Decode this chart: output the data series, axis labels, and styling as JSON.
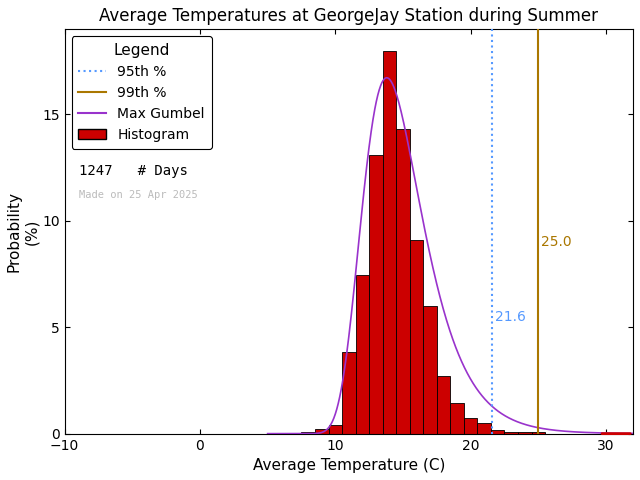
{
  "title": "Average Temperatures at GeorgeJay Station during Summer",
  "xlabel": "Average Temperature (C)",
  "ylabel": "Probability\n(%)",
  "xlim": [
    -10,
    32
  ],
  "ylim": [
    0,
    19
  ],
  "xticks": [
    -10,
    0,
    10,
    20,
    30
  ],
  "yticks": [
    0,
    5,
    10,
    15
  ],
  "n_days": 1247,
  "pct_95": 21.6,
  "pct_99": 25.0,
  "pct_95_color": "#5599ff",
  "pct_99_color": "#aa7700",
  "gumbel_color": "#9933cc",
  "hist_facecolor": "#cc0000",
  "hist_edgecolor": "#000000",
  "background_color": "#ffffff",
  "date_label": "Made on 25 Apr 2025",
  "date_label_color": "#bbbbbb",
  "legend_title": "Legend",
  "bin_centers": [
    8,
    9,
    10,
    11,
    12,
    13,
    14,
    15,
    16,
    17,
    18,
    19,
    20,
    21,
    22,
    23,
    24,
    25,
    26,
    27
  ],
  "bin_probs": [
    0.08,
    0.24,
    0.4,
    3.85,
    7.45,
    13.07,
    17.96,
    14.31,
    9.11,
    5.98,
    2.73,
    1.44,
    0.72,
    0.48,
    0.16,
    0.08,
    0.08,
    0.08,
    0.0,
    0.0
  ],
  "gumbel_mu": 13.8,
  "gumbel_beta": 2.2,
  "title_fontsize": 12,
  "axis_fontsize": 11,
  "tick_fontsize": 10,
  "legend_fontsize": 10
}
